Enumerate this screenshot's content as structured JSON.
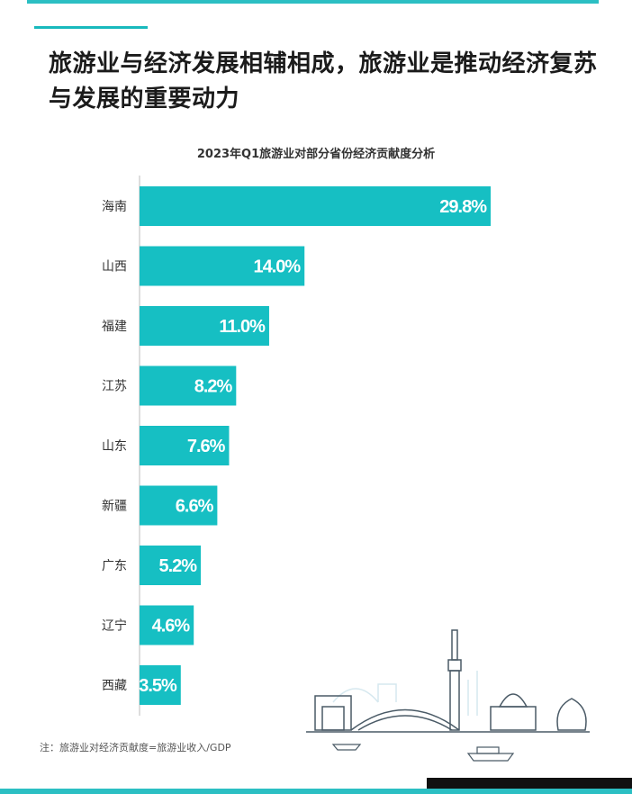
{
  "title": "旅游业与经济发展相辅相成，旅游业是推动经济复苏与发展的重要动力",
  "chart_data": {
    "type": "bar",
    "orientation": "horizontal",
    "title": "2023年Q1旅游业对部分省份经济贡献度分析",
    "categories": [
      "海南",
      "山西",
      "福建",
      "江苏",
      "山东",
      "新疆",
      "广东",
      "辽宁",
      "西藏"
    ],
    "values": [
      29.8,
      14.0,
      11.0,
      8.2,
      7.6,
      6.6,
      5.2,
      4.6,
      3.5
    ],
    "value_labels": [
      "29.8%",
      "14.0%",
      "11.0%",
      "8.2%",
      "7.6%",
      "6.6%",
      "5.2%",
      "4.6%",
      "3.5%"
    ],
    "xlim": [
      0,
      29.8
    ],
    "grid": false,
    "colors": {
      "bar": "#16bfc3",
      "accent": "#2bbfc3"
    }
  },
  "note": "注：旅游业对经济贡献度=旅游业收入/GDP",
  "decoration": "city-skyline-illustration"
}
